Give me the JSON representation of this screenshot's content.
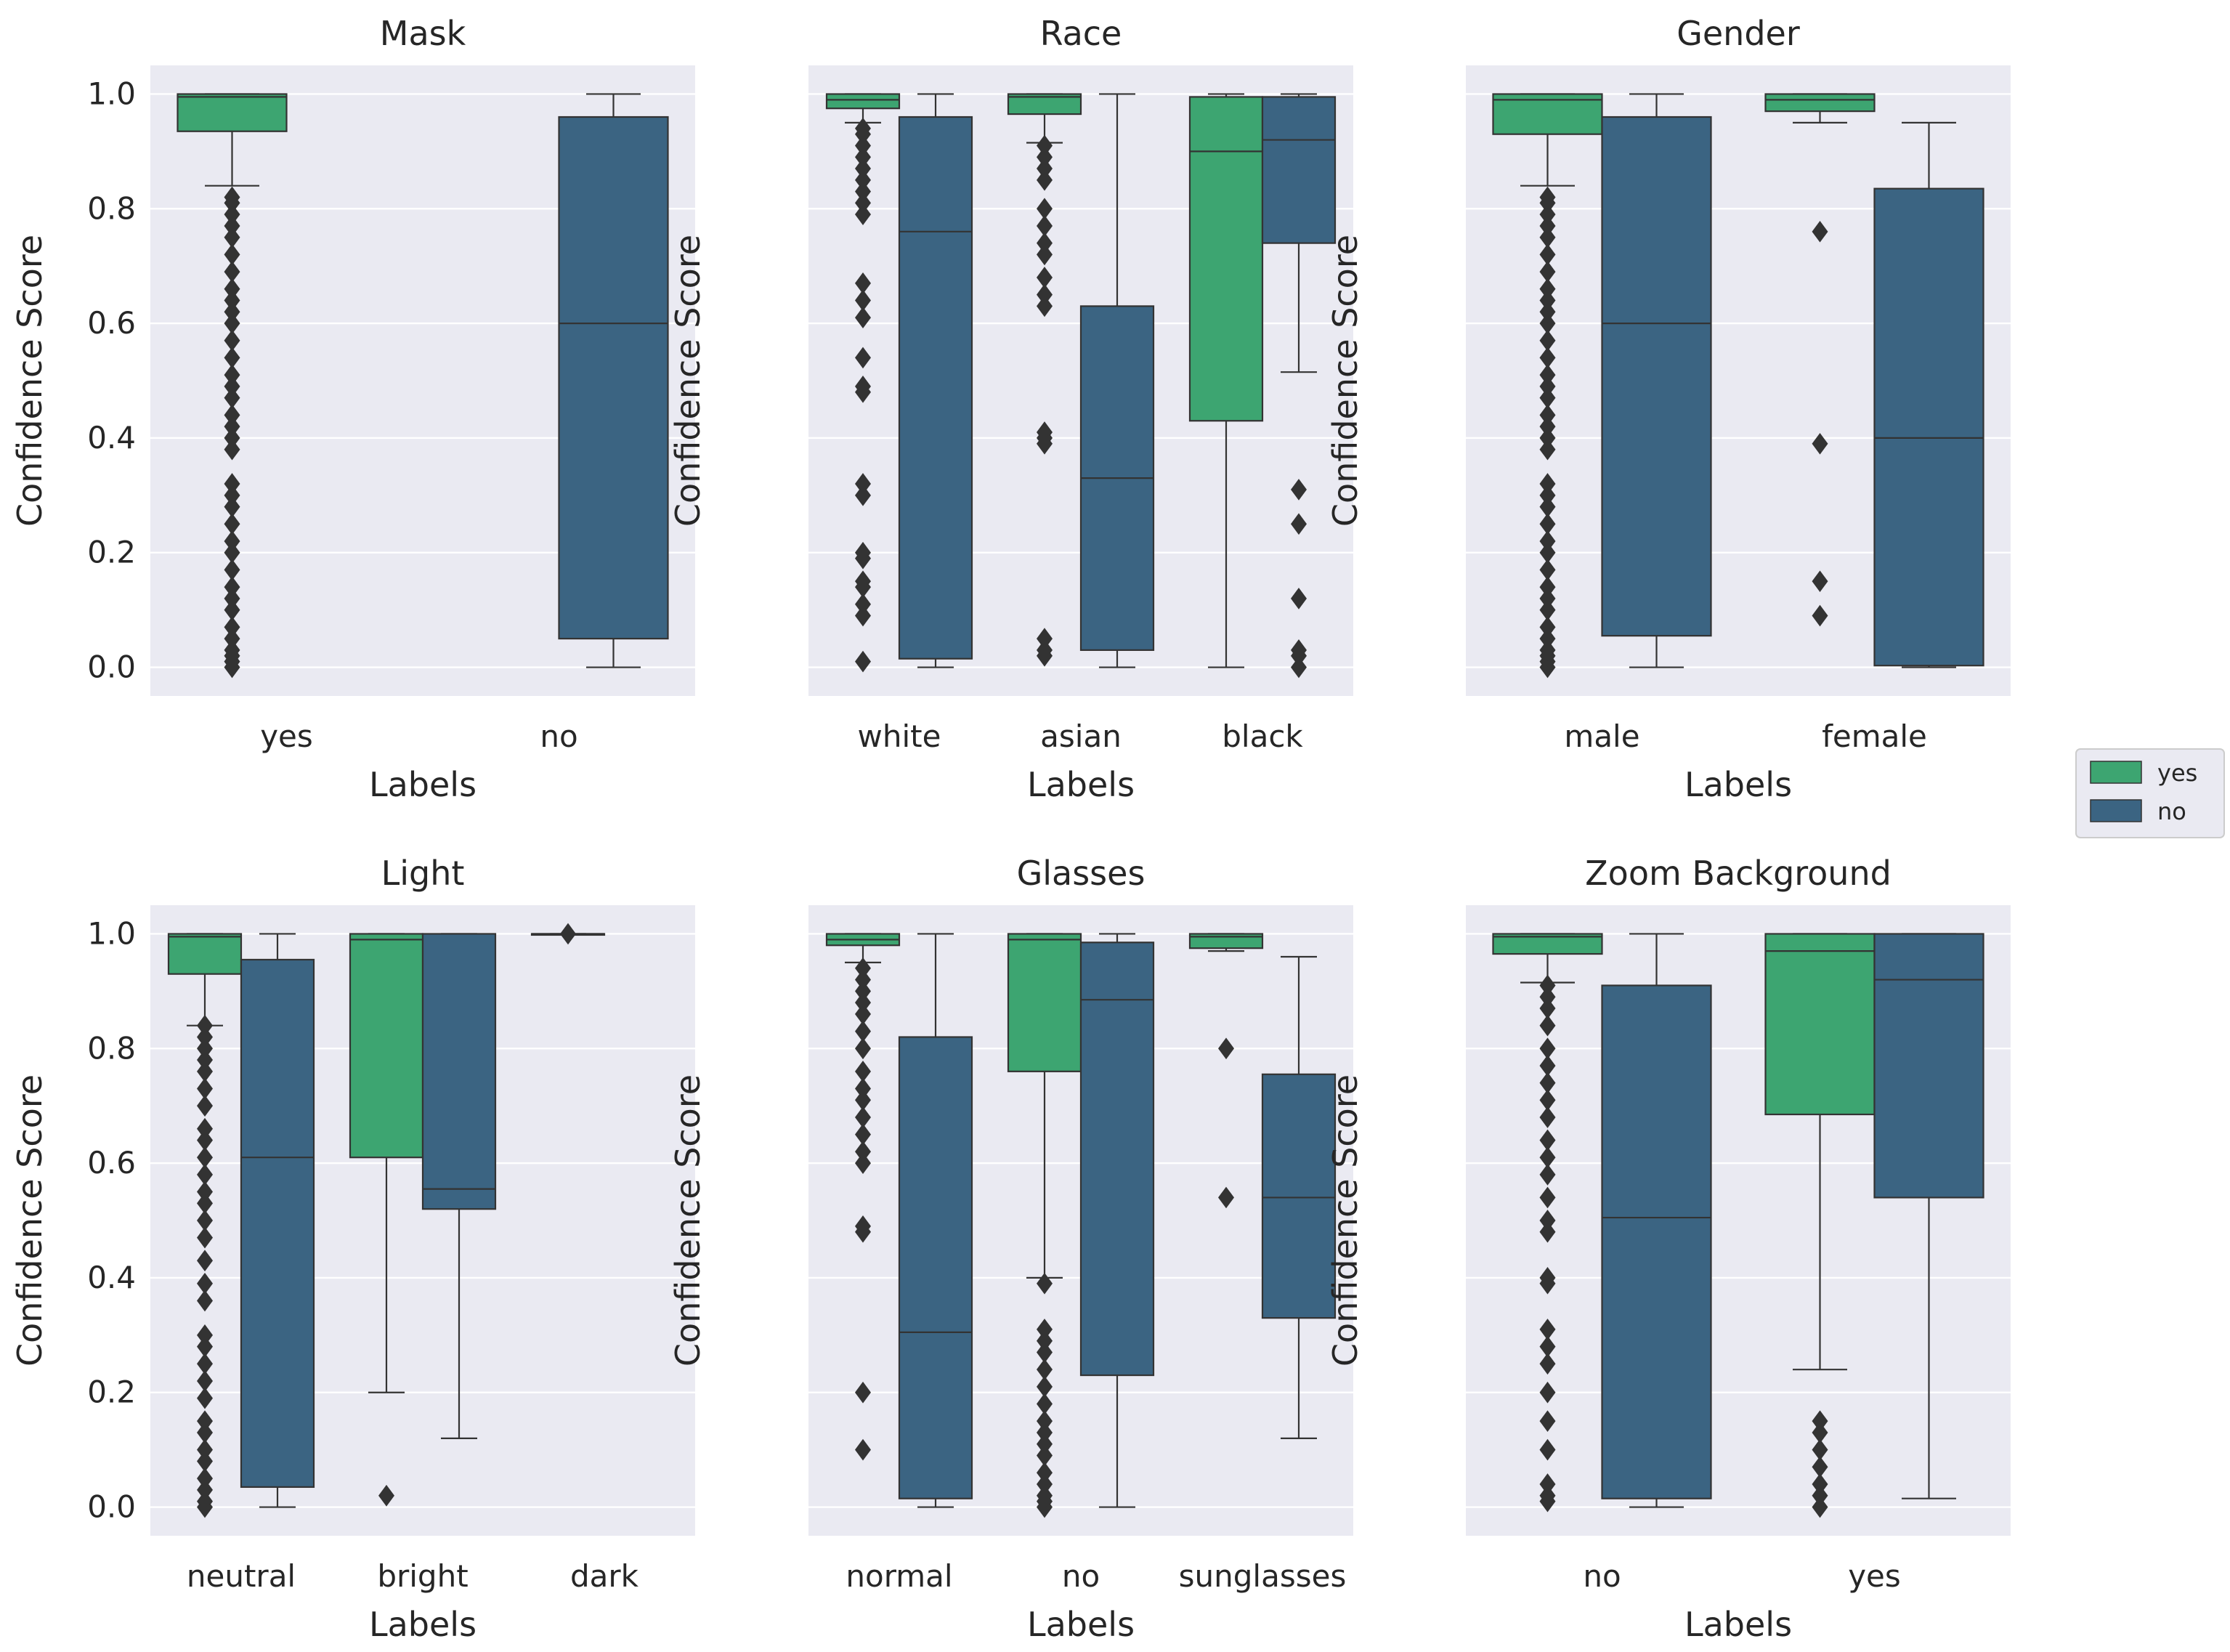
{
  "figure": {
    "legend": {
      "placement": "right",
      "entries": [
        {
          "label": "yes",
          "color": "#3da571"
        },
        {
          "label": "no",
          "color": "#3b6482"
        }
      ]
    },
    "colors": {
      "plot_background": "#eaeaf2",
      "grid": "#ffffff",
      "outline": "#333333"
    }
  },
  "chart_data": [
    {
      "type": "box",
      "title": "Mask",
      "xlabel": "Labels",
      "ylabel": "Confidence Score",
      "ylim": [
        -0.05,
        1.05
      ],
      "yticks": [
        0.0,
        0.2,
        0.4,
        0.6,
        0.8,
        1.0
      ],
      "ytick_labels": [
        "0.0",
        "0.2",
        "0.4",
        "0.6",
        "0.8",
        "1.0"
      ],
      "show_ytick_labels": true,
      "categories": [
        "yes",
        "no"
      ],
      "boxes": [
        {
          "category": "yes",
          "hue": "yes",
          "q1": 0.935,
          "median": 0.995,
          "q3": 1.0,
          "whisker_low": 0.84,
          "whisker_high": 1.0,
          "outliers": [
            0.0,
            0.01,
            0.02,
            0.03,
            0.05,
            0.07,
            0.1,
            0.12,
            0.14,
            0.17,
            0.2,
            0.22,
            0.25,
            0.28,
            0.3,
            0.32,
            0.38,
            0.4,
            0.42,
            0.44,
            0.47,
            0.49,
            0.51,
            0.54,
            0.57,
            0.6,
            0.62,
            0.64,
            0.66,
            0.69,
            0.72,
            0.75,
            0.77,
            0.79,
            0.81,
            0.82
          ]
        },
        {
          "category": "no",
          "hue": "no",
          "q1": 0.05,
          "median": 0.6,
          "q3": 0.96,
          "whisker_low": 0.0,
          "whisker_high": 1.0,
          "outliers": []
        }
      ]
    },
    {
      "type": "box",
      "title": "Race",
      "xlabel": "Labels",
      "ylabel": "Confidence Score",
      "ylim": [
        -0.05,
        1.05
      ],
      "yticks": [
        0.0,
        0.2,
        0.4,
        0.6,
        0.8,
        1.0
      ],
      "ytick_labels": [
        "0.0",
        "0.2",
        "0.4",
        "0.6",
        "0.8",
        "1.0"
      ],
      "show_ytick_labels": false,
      "categories": [
        "white",
        "asian",
        "black"
      ],
      "boxes": [
        {
          "category": "white",
          "hue": "yes",
          "q1": 0.975,
          "median": 0.99,
          "q3": 1.0,
          "whisker_low": 0.95,
          "whisker_high": 1.0,
          "outliers": [
            0.01,
            0.09,
            0.11,
            0.14,
            0.15,
            0.19,
            0.2,
            0.3,
            0.32,
            0.48,
            0.49,
            0.54,
            0.61,
            0.64,
            0.67,
            0.79,
            0.81,
            0.83,
            0.85,
            0.87,
            0.89,
            0.91,
            0.93,
            0.94
          ]
        },
        {
          "category": "white",
          "hue": "no",
          "q1": 0.015,
          "median": 0.76,
          "q3": 0.96,
          "whisker_low": 0.0,
          "whisker_high": 1.0,
          "outliers": []
        },
        {
          "category": "asian",
          "hue": "yes",
          "q1": 0.965,
          "median": 0.995,
          "q3": 1.0,
          "whisker_low": 0.915,
          "whisker_high": 1.0,
          "outliers": [
            0.02,
            0.03,
            0.05,
            0.39,
            0.4,
            0.41,
            0.63,
            0.65,
            0.68,
            0.72,
            0.74,
            0.77,
            0.8,
            0.85,
            0.87,
            0.89,
            0.91
          ]
        },
        {
          "category": "asian",
          "hue": "no",
          "q1": 0.03,
          "median": 0.33,
          "q3": 0.63,
          "whisker_low": 0.0,
          "whisker_high": 1.0,
          "outliers": []
        },
        {
          "category": "black",
          "hue": "yes",
          "q1": 0.43,
          "median": 0.9,
          "q3": 0.995,
          "whisker_low": 0.0,
          "whisker_high": 1.0,
          "outliers": []
        },
        {
          "category": "black",
          "hue": "no",
          "q1": 0.74,
          "median": 0.92,
          "q3": 0.995,
          "whisker_low": 0.515,
          "whisker_high": 1.0,
          "outliers": [
            0.0,
            0.02,
            0.03,
            0.12,
            0.25,
            0.31
          ]
        }
      ]
    },
    {
      "type": "box",
      "title": "Gender",
      "xlabel": "Labels",
      "ylabel": "Confidence Score",
      "ylim": [
        -0.05,
        1.05
      ],
      "yticks": [
        0.0,
        0.2,
        0.4,
        0.6,
        0.8,
        1.0
      ],
      "ytick_labels": [
        "0.0",
        "0.2",
        "0.4",
        "0.6",
        "0.8",
        "1.0"
      ],
      "show_ytick_labels": false,
      "categories": [
        "male",
        "female"
      ],
      "boxes": [
        {
          "category": "male",
          "hue": "yes",
          "q1": 0.93,
          "median": 0.99,
          "q3": 1.0,
          "whisker_low": 0.84,
          "whisker_high": 1.0,
          "outliers": [
            0.0,
            0.01,
            0.02,
            0.03,
            0.05,
            0.07,
            0.1,
            0.12,
            0.14,
            0.17,
            0.2,
            0.22,
            0.25,
            0.28,
            0.3,
            0.32,
            0.38,
            0.4,
            0.42,
            0.44,
            0.47,
            0.49,
            0.51,
            0.54,
            0.57,
            0.6,
            0.62,
            0.64,
            0.66,
            0.69,
            0.72,
            0.75,
            0.77,
            0.79,
            0.81,
            0.82
          ]
        },
        {
          "category": "male",
          "hue": "no",
          "q1": 0.055,
          "median": 0.6,
          "q3": 0.96,
          "whisker_low": 0.0,
          "whisker_high": 1.0,
          "outliers": []
        },
        {
          "category": "female",
          "hue": "yes",
          "q1": 0.97,
          "median": 0.99,
          "q3": 1.0,
          "whisker_low": 0.95,
          "whisker_high": 1.0,
          "outliers": [
            0.09,
            0.15,
            0.39,
            0.76
          ]
        },
        {
          "category": "female",
          "hue": "no",
          "q1": 0.003,
          "median": 0.4,
          "q3": 0.835,
          "whisker_low": 0.0,
          "whisker_high": 0.95,
          "outliers": []
        }
      ]
    },
    {
      "type": "box",
      "title": "Light",
      "xlabel": "Labels",
      "ylabel": "Confidence Score",
      "ylim": [
        -0.05,
        1.05
      ],
      "yticks": [
        0.0,
        0.2,
        0.4,
        0.6,
        0.8,
        1.0
      ],
      "ytick_labels": [
        "0.0",
        "0.2",
        "0.4",
        "0.6",
        "0.8",
        "1.0"
      ],
      "show_ytick_labels": true,
      "categories": [
        "neutral",
        "bright",
        "dark"
      ],
      "boxes": [
        {
          "category": "neutral",
          "hue": "yes",
          "q1": 0.93,
          "median": 0.995,
          "q3": 1.0,
          "whisker_low": 0.84,
          "whisker_high": 1.0,
          "outliers": [
            0.0,
            0.01,
            0.03,
            0.05,
            0.08,
            0.1,
            0.13,
            0.15,
            0.19,
            0.22,
            0.25,
            0.28,
            0.3,
            0.36,
            0.39,
            0.43,
            0.47,
            0.5,
            0.53,
            0.55,
            0.58,
            0.61,
            0.64,
            0.66,
            0.7,
            0.73,
            0.76,
            0.78,
            0.8,
            0.82,
            0.84
          ]
        },
        {
          "category": "neutral",
          "hue": "no",
          "q1": 0.035,
          "median": 0.61,
          "q3": 0.955,
          "whisker_low": 0.0,
          "whisker_high": 1.0,
          "outliers": []
        },
        {
          "category": "bright",
          "hue": "yes",
          "q1": 0.61,
          "median": 0.99,
          "q3": 1.0,
          "whisker_low": 0.2,
          "whisker_high": 1.0,
          "outliers": [
            0.02
          ]
        },
        {
          "category": "bright",
          "hue": "no",
          "q1": 0.52,
          "median": 0.555,
          "q3": 1.0,
          "whisker_low": 0.12,
          "whisker_high": 1.0,
          "outliers": []
        },
        {
          "category": "dark",
          "hue": "yes",
          "q1": 0.999,
          "median": 1.0,
          "q3": 1.0,
          "whisker_low": 0.999,
          "whisker_high": 1.0,
          "outliers": [
            1.0
          ]
        }
      ]
    },
    {
      "type": "box",
      "title": "Glasses",
      "xlabel": "Labels",
      "ylabel": "Confidence Score",
      "ylim": [
        -0.05,
        1.05
      ],
      "yticks": [
        0.0,
        0.2,
        0.4,
        0.6,
        0.8,
        1.0
      ],
      "ytick_labels": [
        "0.0",
        "0.2",
        "0.4",
        "0.6",
        "0.8",
        "1.0"
      ],
      "show_ytick_labels": false,
      "categories": [
        "normal",
        "no",
        "sunglasses"
      ],
      "boxes": [
        {
          "category": "normal",
          "hue": "yes",
          "q1": 0.98,
          "median": 0.99,
          "q3": 1.0,
          "whisker_low": 0.95,
          "whisker_high": 1.0,
          "outliers": [
            0.1,
            0.2,
            0.48,
            0.49,
            0.6,
            0.62,
            0.65,
            0.68,
            0.71,
            0.73,
            0.76,
            0.8,
            0.83,
            0.86,
            0.88,
            0.9,
            0.92,
            0.94
          ]
        },
        {
          "category": "normal",
          "hue": "no",
          "q1": 0.015,
          "median": 0.305,
          "q3": 0.82,
          "whisker_low": 0.0,
          "whisker_high": 1.0,
          "outliers": []
        },
        {
          "category": "no",
          "hue": "yes",
          "q1": 0.76,
          "median": 0.99,
          "q3": 1.0,
          "whisker_low": 0.4,
          "whisker_high": 1.0,
          "outliers": [
            0.0,
            0.01,
            0.02,
            0.04,
            0.06,
            0.09,
            0.11,
            0.13,
            0.15,
            0.18,
            0.21,
            0.24,
            0.27,
            0.29,
            0.31,
            0.39
          ]
        },
        {
          "category": "no",
          "hue": "no",
          "q1": 0.23,
          "median": 0.885,
          "q3": 0.985,
          "whisker_low": 0.0,
          "whisker_high": 1.0,
          "outliers": []
        },
        {
          "category": "sunglasses",
          "hue": "yes",
          "q1": 0.975,
          "median": 0.995,
          "q3": 1.0,
          "whisker_low": 0.97,
          "whisker_high": 1.0,
          "outliers": [
            0.54,
            0.8
          ]
        },
        {
          "category": "sunglasses",
          "hue": "no",
          "q1": 0.33,
          "median": 0.54,
          "q3": 0.755,
          "whisker_low": 0.12,
          "whisker_high": 0.96,
          "outliers": []
        }
      ]
    },
    {
      "type": "box",
      "title": "Zoom Background",
      "xlabel": "Labels",
      "ylabel": "Confidence Score",
      "ylim": [
        -0.05,
        1.05
      ],
      "yticks": [
        0.0,
        0.2,
        0.4,
        0.6,
        0.8,
        1.0
      ],
      "ytick_labels": [
        "0.0",
        "0.2",
        "0.4",
        "0.6",
        "0.8",
        "1.0"
      ],
      "show_ytick_labels": false,
      "categories": [
        "no",
        "yes"
      ],
      "boxes": [
        {
          "category": "no",
          "hue": "yes",
          "q1": 0.965,
          "median": 0.995,
          "q3": 1.0,
          "whisker_low": 0.915,
          "whisker_high": 1.0,
          "outliers": [
            0.01,
            0.02,
            0.04,
            0.1,
            0.15,
            0.2,
            0.25,
            0.28,
            0.31,
            0.39,
            0.4,
            0.48,
            0.5,
            0.54,
            0.58,
            0.61,
            0.64,
            0.68,
            0.71,
            0.74,
            0.77,
            0.8,
            0.84,
            0.87,
            0.89,
            0.91
          ]
        },
        {
          "category": "no",
          "hue": "no",
          "q1": 0.015,
          "median": 0.505,
          "q3": 0.91,
          "whisker_low": 0.0,
          "whisker_high": 1.0,
          "outliers": []
        },
        {
          "category": "yes",
          "hue": "yes",
          "q1": 0.685,
          "median": 0.97,
          "q3": 1.0,
          "whisker_low": 0.24,
          "whisker_high": 1.0,
          "outliers": [
            0.0,
            0.02,
            0.04,
            0.07,
            0.1,
            0.13,
            0.15
          ]
        },
        {
          "category": "yes",
          "hue": "no",
          "q1": 0.54,
          "median": 0.92,
          "q3": 1.0,
          "whisker_low": 0.015,
          "whisker_high": 1.0,
          "outliers": []
        }
      ]
    }
  ]
}
